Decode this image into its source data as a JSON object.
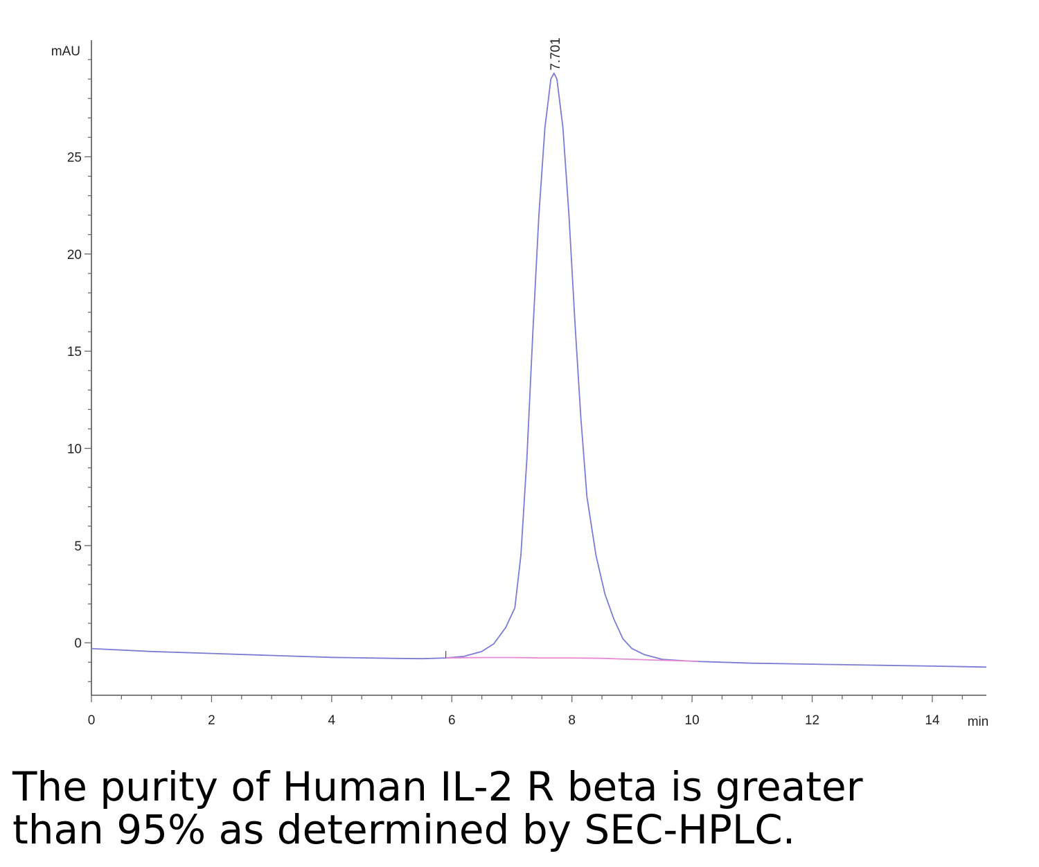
{
  "chart_data": {
    "type": "line",
    "xlabel": "min",
    "ylabel": "mAU",
    "xlim": [
      0,
      14.9
    ],
    "ylim": [
      -2.7,
      31
    ],
    "x_ticks": [
      0,
      2,
      4,
      6,
      8,
      10,
      12,
      14
    ],
    "y_ticks": [
      0,
      5,
      10,
      15,
      20,
      25
    ],
    "x_tick_labels": [
      "0",
      "2",
      "4",
      "6",
      "8",
      "10",
      "12",
      "14"
    ],
    "y_tick_labels": [
      "0",
      "5",
      "10",
      "15",
      "20",
      "25"
    ],
    "grid": false,
    "peak_label": {
      "text": "7.701",
      "x": 7.701,
      "y": 29.3
    },
    "series": [
      {
        "color": "#7b7bd6",
        "x": [
          0,
          1,
          2,
          3,
          4,
          5,
          5.5,
          5.9,
          6.2,
          6.5,
          6.7,
          6.9,
          7.05,
          7.15,
          7.25,
          7.35,
          7.45,
          7.55,
          7.65,
          7.701,
          7.75,
          7.85,
          7.95,
          8.05,
          8.15,
          8.25,
          8.4,
          8.55,
          8.7,
          8.85,
          9.0,
          9.2,
          9.5,
          10,
          11,
          12,
          13,
          14,
          14.9
        ],
        "y": [
          -0.3,
          -0.45,
          -0.55,
          -0.65,
          -0.75,
          -0.8,
          -0.82,
          -0.78,
          -0.7,
          -0.45,
          -0.05,
          0.8,
          1.8,
          4.5,
          9.5,
          16,
          22,
          26.5,
          29,
          29.3,
          29,
          26.5,
          22,
          16.5,
          11.5,
          7.5,
          4.5,
          2.5,
          1.2,
          0.2,
          -0.3,
          -0.6,
          -0.85,
          -0.95,
          -1.05,
          -1.1,
          -1.15,
          -1.2,
          -1.25
        ]
      },
      {
        "color": "#e88ad2",
        "x": [
          5.9,
          6.5,
          7,
          7.5,
          8,
          8.5,
          9,
          9.5,
          10.1
        ],
        "y": [
          -0.78,
          -0.76,
          -0.76,
          -0.78,
          -0.78,
          -0.8,
          -0.85,
          -0.9,
          -0.95
        ]
      }
    ]
  },
  "caption": {
    "line1": "The purity of Human IL-2 R beta is greater",
    "line2": "than 95% as determined by SEC-HPLC."
  }
}
